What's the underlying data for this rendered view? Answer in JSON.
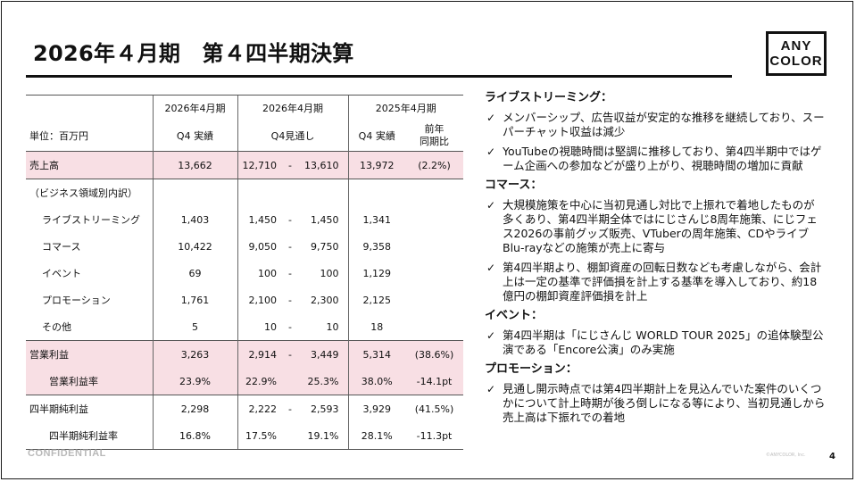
{
  "title": "2026年４月期　第４四半期決算",
  "logo": {
    "line1": "ANY",
    "line2": "COLOR"
  },
  "table": {
    "header": {
      "col_a_top": "2026年4月期",
      "col_b_top": "2026年4月期",
      "col_c_top": "2025年4月期",
      "unit_label": "単位：百万円",
      "col_a_sub": "Q4 実績",
      "col_b_sub": "Q4見通し",
      "col_c_sub": "Q4 実績",
      "col_d_sub_1": "前年",
      "col_d_sub_2": "同期比"
    },
    "rows": {
      "sales": {
        "label": "売上高",
        "actual": "13,662",
        "fc_low": "12,710",
        "dash": "-",
        "fc_high": "13,610",
        "prev": "13,972",
        "yoy": "(2.2%)"
      },
      "breakdown": {
        "label": "（ビジネス領域別内訳）"
      },
      "live": {
        "label": "ライブストリーミング",
        "actual": "1,403",
        "fc_low": "1,450",
        "dash": "-",
        "fc_high": "1,450",
        "prev": "1,341"
      },
      "commerce": {
        "label": "コマース",
        "actual": "10,422",
        "fc_low": "9,050",
        "dash": "-",
        "fc_high": "9,750",
        "prev": "9,358"
      },
      "event": {
        "label": "イベント",
        "actual": "69",
        "fc_low": "100",
        "dash": "-",
        "fc_high": "100",
        "prev": "1,129"
      },
      "promo": {
        "label": "プロモーション",
        "actual": "1,761",
        "fc_low": "2,100",
        "dash": "-",
        "fc_high": "2,300",
        "prev": "2,125"
      },
      "other": {
        "label": "その他",
        "actual": "5",
        "fc_low": "10",
        "dash": "-",
        "fc_high": "10",
        "prev": "18"
      },
      "op_income": {
        "label": "営業利益",
        "actual": "3,263",
        "fc_low": "2,914",
        "dash": "-",
        "fc_high": "3,449",
        "prev": "5,314",
        "yoy": "(38.6%)"
      },
      "op_margin": {
        "label": "営業利益率",
        "actual": "23.9%",
        "fc_low": "22.9%",
        "fc_high": "25.3%",
        "prev": "38.0%",
        "yoy": "-14.1pt"
      },
      "net_income": {
        "label": "四半期純利益",
        "actual": "2,298",
        "fc_low": "2,222",
        "dash": "-",
        "fc_high": "2,593",
        "prev": "3,929",
        "yoy": "(41.5%)"
      },
      "net_margin": {
        "label": "四半期純利益率",
        "actual": "16.8%",
        "fc_low": "17.5%",
        "fc_high": "19.1%",
        "prev": "28.1%",
        "yoy": "-11.3pt"
      }
    }
  },
  "notes": {
    "live_title": "ライブストリーミング：",
    "live_1": "メンバーシップ、広告収益が安定的な推移を継続しており、スーパーチャット収益は減少",
    "live_2": "YouTubeの視聴時間は堅調に推移しており、第4四半期中ではゲーム企画への参加などが盛り上がり、視聴時間の増加に貢献",
    "commerce_title": "コマース：",
    "commerce_1": "大規模施策を中心に当初見通し対比で上振れで着地したものが多くあり、第4四半期全体ではにじさんじ8周年施策、にじフェス2026の事前グッズ販売、VTuberの周年施策、CDやライブBlu-rayなどの施策が売上に寄与",
    "commerce_2": "第4四半期より、棚卸資産の回転日数なども考慮しながら、会計上は一定の基準で評価損を計上する基準を導入しており、約18億円の棚卸資産評価損を計上",
    "event_title": "イベント：",
    "event_1": "第4四半期は「にじさんじ WORLD TOUR 2025」の追体験型公演である「Encore公演」のみ実施",
    "promo_title": "プロモーション：",
    "promo_1": "見通し開示時点では第4四半期計上を見込んでいた案件のいくつかについて計上時期が後ろ倒しになる等により、当初見通しから売上高は下振れでの着地"
  },
  "footer": {
    "confidential": "CONFIDENTIAL",
    "copyright": "©ANYCOLOR, Inc.",
    "page": "4"
  }
}
